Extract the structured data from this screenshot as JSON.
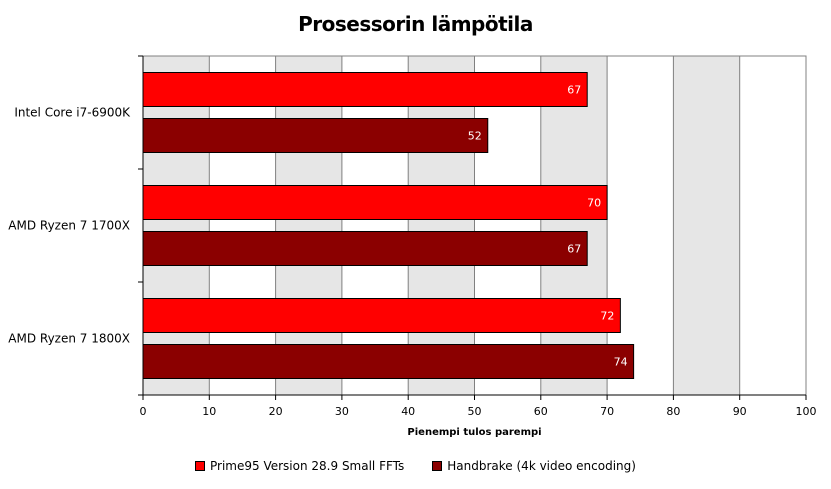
{
  "chart_data": {
    "type": "bar",
    "orientation": "horizontal",
    "title": "Prosessorin lämpötila",
    "xlabel": "Pienempi tulos parempi",
    "ylabel": "",
    "categories": [
      "Intel Core i7-6900K",
      "AMD Ryzen 7 1700X",
      "AMD Ryzen 7 1800X"
    ],
    "series": [
      {
        "name": "Prime95 Version 28.9 Small FFTs",
        "values": [
          67,
          70,
          72
        ],
        "color": "#ff0000"
      },
      {
        "name": "Handbrake (4k video encoding)",
        "values": [
          52,
          67,
          74
        ],
        "color": "#8b0000"
      }
    ],
    "xlim": [
      0,
      100
    ],
    "xticks": [
      0,
      10,
      20,
      30,
      40,
      50,
      60,
      70,
      80,
      90,
      100
    ],
    "grid": true,
    "legend": "bottom"
  }
}
